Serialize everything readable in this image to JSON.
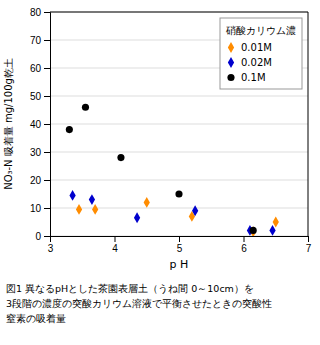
{
  "chart_data": {
    "type": "scatter",
    "legend_title": "硝酸カリウム濃",
    "xlabel": "p H",
    "ylabel": "NO₃-N 吸着量  mg/100g乾土",
    "xlim": [
      3,
      7
    ],
    "ylim": [
      0,
      80
    ],
    "xticks": [
      3,
      4,
      5,
      6,
      7
    ],
    "yticks": [
      0,
      10,
      20,
      30,
      40,
      50,
      60,
      70,
      80
    ],
    "grid": "y",
    "legend": "upper right",
    "series": [
      {
        "name": "0.01M",
        "color": "#FF8C00",
        "marker": "diamond",
        "x": [
          3.45,
          3.7,
          4.5,
          5.2,
          6.15,
          6.5
        ],
        "values": [
          9.5,
          9.5,
          12,
          7,
          1.5,
          5
        ]
      },
      {
        "name": "0.02M",
        "color": "#0000CD",
        "marker": "diamond",
        "x": [
          3.35,
          3.65,
          4.35,
          5.25,
          6.1,
          6.45
        ],
        "values": [
          14.5,
          13,
          6.5,
          9,
          2,
          2
        ]
      },
      {
        "name": "0.1M",
        "color": "#000000",
        "marker": "circle",
        "x": [
          3.3,
          3.55,
          4.1,
          5.0,
          6.15
        ],
        "values": [
          38,
          46,
          28,
          15,
          2
        ]
      }
    ],
    "caption": [
      "図1  異なるpHとした茶園表層土（うね間 0～10cm）を",
      "3段階の濃度の突酸カリウム溶液で平衡させたときの突酸性",
      "窒素の吸着量"
    ]
  }
}
